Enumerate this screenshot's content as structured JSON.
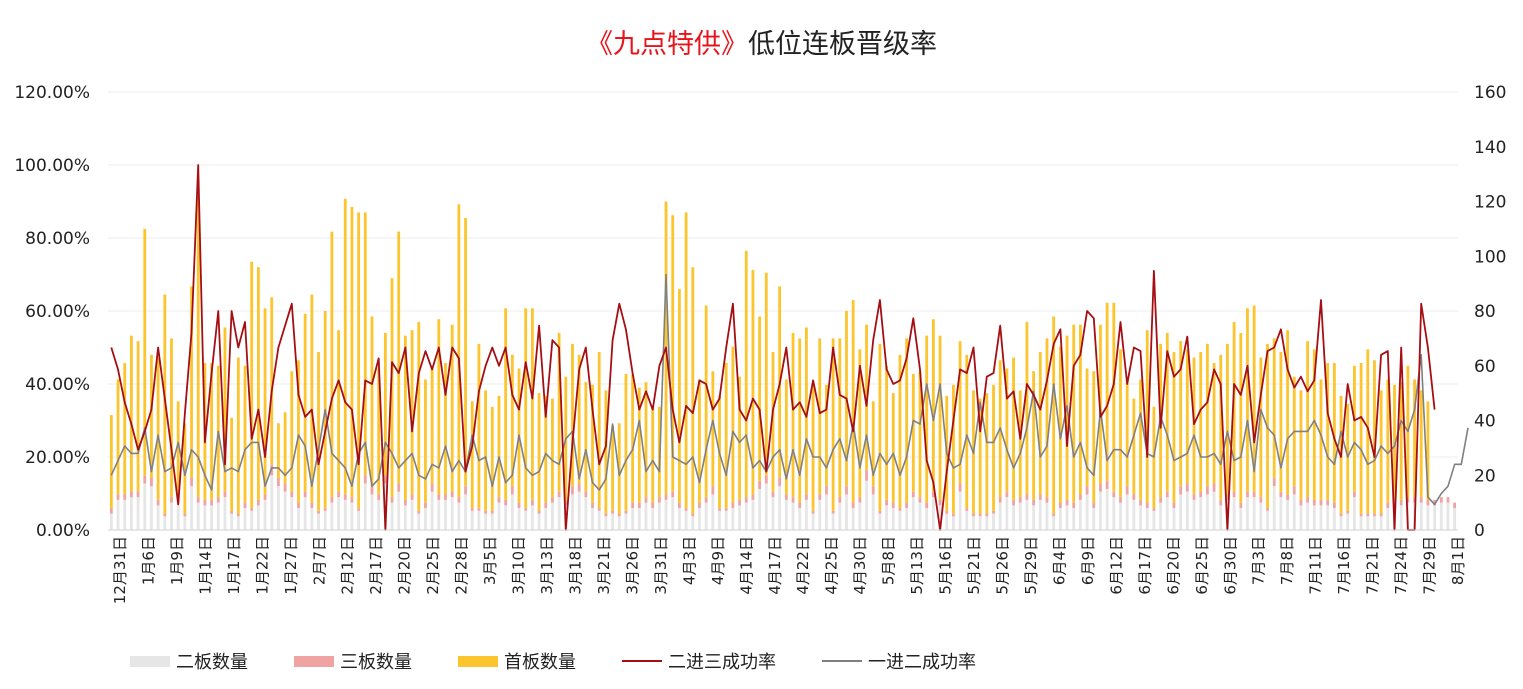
{
  "title": {
    "prefix": "《九点特供》",
    "main": "低位连板晋级率"
  },
  "colors": {
    "title_red": "#e8141b",
    "two_board": "#e6e6e6",
    "three_board": "#f0a3a3",
    "first_board": "#fcc52e",
    "line_23": "#a50f14",
    "line_12": "#808080"
  },
  "legend": [
    {
      "name": "二板数量",
      "type": "bar",
      "color": "#e6e6e6"
    },
    {
      "name": "三板数量",
      "type": "bar",
      "color": "#f0a3a3"
    },
    {
      "name": "首板数量",
      "type": "bar",
      "color": "#fcc52e"
    },
    {
      "name": "二进三成功率",
      "type": "line",
      "color": "#a50f14"
    },
    {
      "name": "一进二成功率",
      "type": "line",
      "color": "#808080"
    }
  ],
  "chart_data": {
    "type": "bar",
    "combo": "stacked-bar + line (dual axis)",
    "title": "《九点特供》低位连板晋级率",
    "y_left": {
      "ticks": [
        "0.00%",
        "20.00%",
        "40.00%",
        "60.00%",
        "80.00%",
        "100.00%",
        "120.00%"
      ],
      "ylim": [
        0,
        120
      ]
    },
    "y_right": {
      "ticks": [
        "0",
        "20",
        "40",
        "60",
        "80",
        "100",
        "120",
        "140",
        "160"
      ],
      "ylim": [
        0,
        160
      ]
    },
    "x_tick_labels": [
      "12月31日",
      "1月6日",
      "1月9日",
      "1月14日",
      "1月17日",
      "1月22日",
      "1月27日",
      "2月7日",
      "2月12日",
      "2月17日",
      "2月20日",
      "2月25日",
      "2月28日",
      "3月5日",
      "3月10日",
      "3月13日",
      "3月18日",
      "3月21日",
      "3月26日",
      "3月31日",
      "4月3日",
      "4月9日",
      "4月14日",
      "4月17日",
      "4月22日",
      "4月25日",
      "4月30日",
      "5月8日",
      "5月13日",
      "5月16日",
      "5月21日",
      "5月26日",
      "5月29日",
      "6月4日",
      "6月9日",
      "6月12日",
      "6月17日",
      "6月20日",
      "6月25日",
      "6月30日",
      "7月3日",
      "7月8日",
      "7月11日",
      "7月16日",
      "7月21日",
      "7月24日",
      "7月29日",
      "8月1日"
    ],
    "grid": true,
    "legend_position": "bottom",
    "series": [
      {
        "name": "二板数量",
        "type": "bar",
        "axis": "right",
        "values": [
          6,
          11,
          11,
          12,
          12,
          17,
          16,
          9,
          5,
          10,
          10,
          5,
          16,
          10,
          9,
          9,
          10,
          12,
          6,
          5,
          8,
          7,
          9,
          11,
          20,
          16,
          14,
          12,
          8,
          12,
          8,
          6,
          7,
          10,
          12,
          11,
          10,
          7,
          17,
          13,
          11,
          17,
          10,
          14,
          9,
          11,
          6,
          8,
          14,
          11,
          11,
          12,
          10,
          13,
          7,
          7,
          6,
          6,
          10,
          9,
          13,
          8,
          7,
          9,
          6,
          8,
          10,
          12,
          9,
          13,
          14,
          12,
          8,
          7,
          5,
          6,
          5,
          6,
          8,
          8,
          10,
          8,
          10,
          11,
          12,
          8,
          7,
          5,
          8,
          10,
          13,
          7,
          7,
          8,
          9,
          10,
          11,
          15,
          17,
          12,
          16,
          11,
          10,
          8,
          11,
          6,
          11,
          13,
          6,
          10,
          13,
          8,
          10,
          18,
          13,
          6,
          9,
          8,
          7,
          8,
          12,
          10,
          8,
          12,
          9,
          6,
          5,
          14,
          7,
          5,
          5,
          5,
          6,
          10,
          12,
          9,
          10,
          11,
          9,
          11,
          10,
          5,
          8,
          9,
          8,
          11,
          13,
          8,
          14,
          15,
          12,
          10,
          13,
          11,
          9,
          8,
          7,
          10,
          12,
          8,
          13,
          14,
          11,
          12,
          13,
          14,
          9,
          11,
          12,
          8,
          12,
          12,
          10,
          7,
          16,
          12,
          11,
          13,
          9,
          10,
          9,
          9,
          9,
          8,
          5,
          6,
          12,
          5,
          5,
          5,
          5,
          8,
          6,
          9,
          10,
          10,
          10,
          9,
          9,
          10,
          10,
          8
        ]
      },
      {
        "name": "三板数量",
        "type": "bar",
        "axis": "right",
        "values": [
          2,
          2,
          2,
          2,
          2,
          3,
          3,
          2,
          1,
          2,
          2,
          1,
          3,
          2,
          2,
          2,
          2,
          2,
          1,
          1,
          2,
          1,
          2,
          2,
          4,
          3,
          3,
          2,
          2,
          2,
          2,
          1,
          1,
          2,
          2,
          2,
          2,
          1,
          3,
          3,
          2,
          3,
          2,
          3,
          2,
          2,
          1,
          2,
          3,
          2,
          2,
          2,
          2,
          3,
          1,
          1,
          1,
          1,
          2,
          2,
          3,
          2,
          1,
          2,
          1,
          2,
          2,
          2,
          2,
          3,
          3,
          2,
          2,
          1,
          1,
          1,
          1,
          1,
          2,
          2,
          2,
          2,
          2,
          2,
          2,
          2,
          1,
          1,
          2,
          2,
          3,
          1,
          1,
          2,
          2,
          2,
          2,
          3,
          3,
          2,
          3,
          2,
          2,
          2,
          2,
          1,
          2,
          3,
          1,
          2,
          3,
          2,
          2,
          4,
          3,
          1,
          2,
          2,
          1,
          2,
          2,
          2,
          2,
          2,
          2,
          1,
          1,
          3,
          1,
          1,
          1,
          1,
          1,
          2,
          2,
          2,
          2,
          2,
          2,
          2,
          2,
          1,
          2,
          2,
          2,
          2,
          3,
          2,
          3,
          3,
          2,
          2,
          3,
          2,
          2,
          2,
          1,
          2,
          2,
          2,
          3,
          3,
          2,
          2,
          3,
          3,
          2,
          2,
          2,
          2,
          2,
          2,
          2,
          1,
          3,
          2,
          2,
          3,
          2,
          2,
          2,
          2,
          2,
          2,
          1,
          1,
          2,
          1,
          1,
          1,
          1,
          2,
          1,
          2,
          2,
          2,
          2,
          2,
          2,
          2,
          2,
          2
        ]
      },
      {
        "name": "首板数量",
        "type": "bar",
        "axis": "right",
        "values": [
          34,
          42,
          48,
          57,
          55,
          90,
          45,
          52,
          80,
          58,
          35,
          33,
          70,
          110,
          50,
          50,
          48,
          60,
          34,
          57,
          50,
          90,
          85,
          68,
          61,
          20,
          26,
          44,
          52,
          65,
          76,
          58,
          72,
          97,
          59,
          108,
          106,
          108,
          96,
          62,
          46,
          52,
          80,
          92,
          60,
          60,
          69,
          45,
          42,
          64,
          48,
          61,
          107,
          98,
          39,
          60,
          44,
          38,
          37,
          70,
          48,
          49,
          73,
          70,
          43,
          39,
          36,
          58,
          45,
          52,
          47,
          40,
          43,
          57,
          45,
          31,
          33,
          50,
          47,
          42,
          42,
          35,
          33,
          107,
          101,
          78,
          108,
          90,
          45,
          70,
          42,
          41,
          53,
          57,
          45,
          90,
          82,
          60,
          74,
          51,
          70,
          42,
          60,
          60,
          61,
          46,
          57,
          37,
          63,
          58,
          64,
          74,
          54,
          53,
          31,
          61,
          49,
          40,
          56,
          60,
          43,
          46,
          61,
          63,
          60,
          42,
          47,
          52,
          56,
          45,
          42,
          44,
          46,
          50,
          45,
          52,
          39,
          63,
          47,
          52,
          58,
          72,
          57,
          60,
          65,
          62,
          43,
          48,
          58,
          65,
          69,
          54,
          40,
          35,
          44,
          63,
          37,
          56,
          58,
          55,
          53,
          49,
          50,
          51,
          52,
          44,
          53,
          55,
          62,
          62,
          67,
          68,
          51,
          60,
          51,
          51,
          60,
          40,
          40,
          57,
          55,
          44,
          50,
          51,
          43,
          39,
          46,
          55,
          60,
          56,
          45,
          45,
          46,
          43,
          48,
          43,
          39,
          36
        ]
      },
      {
        "name": "二进三成功率",
        "type": "line",
        "axis": "left",
        "values": [
          50,
          44,
          35,
          29,
          22,
          27,
          33,
          50,
          36,
          22,
          7,
          32,
          54,
          100,
          24,
          43,
          60,
          18,
          60,
          50,
          57,
          25,
          33,
          20,
          38,
          50,
          56,
          62,
          37,
          31,
          33,
          18,
          27,
          36,
          41,
          35,
          33,
          18,
          41,
          40,
          47,
          0,
          46,
          43,
          50,
          27,
          43,
          49,
          44,
          50,
          37,
          50,
          47,
          16,
          23,
          38,
          45,
          50,
          45,
          50,
          37,
          33,
          46,
          36,
          56,
          31,
          52,
          50,
          0,
          24,
          44,
          50,
          33,
          18,
          23,
          52,
          62,
          55,
          43,
          33,
          38,
          33,
          45,
          50,
          33,
          24,
          34,
          32,
          41,
          40,
          33,
          36,
          50,
          62,
          33,
          30,
          36,
          33,
          16,
          33,
          40,
          50,
          33,
          35,
          31,
          41,
          32,
          33,
          50,
          37,
          36,
          27,
          45,
          34,
          52,
          63,
          44,
          40,
          41,
          47,
          58,
          44,
          19,
          13,
          0,
          16,
          30,
          44,
          43,
          50,
          27,
          42,
          43,
          56,
          36,
          38,
          25,
          40,
          37,
          33,
          41,
          51,
          55,
          23,
          45,
          48,
          60,
          58,
          31,
          34,
          40,
          57,
          40,
          50,
          49,
          20,
          71,
          28,
          49,
          42,
          44,
          53,
          29,
          33,
          35,
          44,
          40,
          0,
          40,
          37,
          45,
          24,
          37,
          49,
          50,
          55,
          44,
          39,
          42,
          38,
          41,
          63,
          32,
          25,
          20,
          40,
          30,
          31,
          28,
          20,
          48,
          49,
          0,
          50,
          0,
          0,
          62,
          50,
          33
        ]
      },
      {
        "name": "一进二成功率",
        "type": "line",
        "axis": "left",
        "values": [
          15,
          19,
          23,
          21,
          21,
          28,
          16,
          26,
          16,
          17,
          24,
          15,
          22,
          20,
          15,
          11,
          27,
          16,
          17,
          16,
          22,
          24,
          24,
          12,
          17,
          17,
          15,
          17,
          26,
          23,
          12,
          22,
          33,
          21,
          19,
          17,
          12,
          21,
          24,
          12,
          14,
          24,
          21,
          17,
          19,
          21,
          15,
          14,
          18,
          17,
          23,
          16,
          19,
          16,
          26,
          19,
          20,
          12,
          20,
          13,
          15,
          26,
          17,
          15,
          16,
          21,
          19,
          18,
          25,
          27,
          14,
          22,
          13,
          11,
          14,
          29,
          15,
          19,
          22,
          30,
          16,
          19,
          16,
          70,
          20,
          19,
          18,
          20,
          13,
          22,
          30,
          21,
          15,
          27,
          24,
          26,
          17,
          19,
          16,
          20,
          22,
          14,
          22,
          15,
          25,
          20,
          20,
          17,
          22,
          25,
          19,
          29,
          17,
          26,
          15,
          21,
          18,
          21,
          15,
          20,
          30,
          29,
          40,
          30,
          40,
          21,
          17,
          18,
          26,
          21,
          35,
          24,
          24,
          28,
          22,
          17,
          21,
          28,
          38,
          20,
          23,
          40,
          25,
          34,
          20,
          24,
          17,
          15,
          33,
          19,
          22,
          22,
          20,
          26,
          32,
          21,
          20,
          31,
          26,
          19,
          20,
          21,
          26,
          20,
          20,
          21,
          18,
          27,
          19,
          20,
          30,
          16,
          33,
          28,
          26,
          17,
          25,
          27,
          27,
          27,
          30,
          26,
          20,
          18,
          27,
          20,
          24,
          22,
          18,
          19,
          23,
          21,
          23,
          30,
          27,
          33,
          48,
          9,
          7,
          10,
          12,
          18,
          18,
          28
        ]
      }
    ]
  }
}
